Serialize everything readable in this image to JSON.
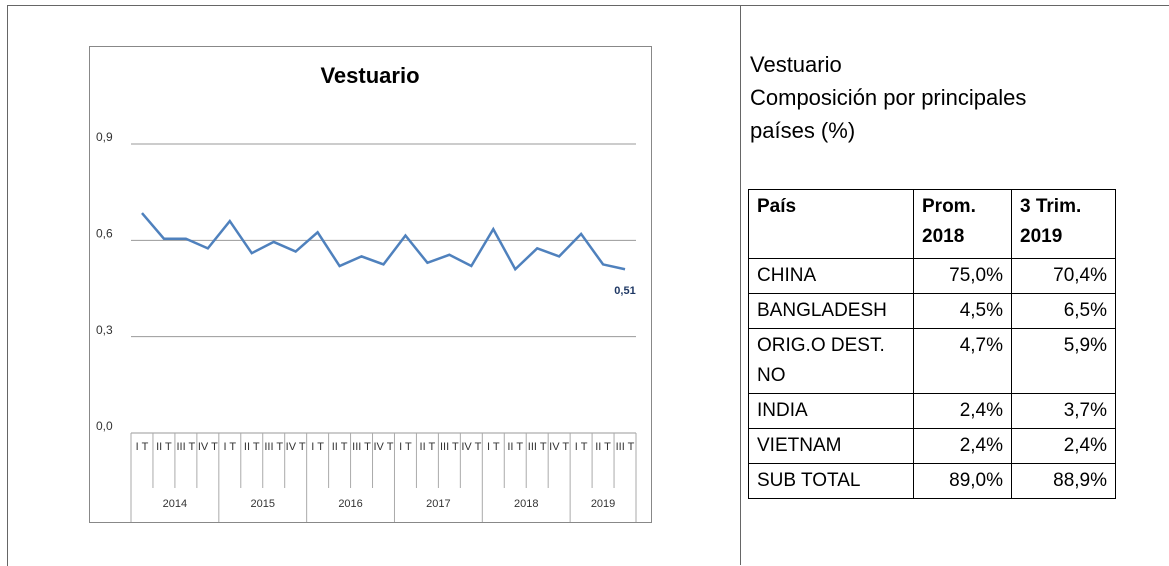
{
  "chart_data": {
    "type": "line",
    "title": "Vestuario",
    "categories": [
      "I T",
      "II T",
      "III T",
      "IV T",
      "I T",
      "II T",
      "III T",
      "IV T",
      "I T",
      "II T",
      "III T",
      "IV T",
      "I T",
      "II T",
      "III T",
      "IV T",
      "I T",
      "II T",
      "III T",
      "IV T",
      "I T",
      "II T",
      "III T"
    ],
    "groups": [
      {
        "label": "2014",
        "span": 4
      },
      {
        "label": "2015",
        "span": 4
      },
      {
        "label": "2016",
        "span": 4
      },
      {
        "label": "2017",
        "span": 4
      },
      {
        "label": "2018",
        "span": 4
      },
      {
        "label": "2019",
        "span": 3
      }
    ],
    "series": [
      {
        "name": "Vestuario",
        "color": "#4f81bd",
        "values": [
          0.685,
          0.605,
          0.605,
          0.575,
          0.66,
          0.56,
          0.595,
          0.565,
          0.625,
          0.52,
          0.55,
          0.525,
          0.615,
          0.53,
          0.555,
          0.52,
          0.635,
          0.51,
          0.575,
          0.55,
          0.62,
          0.525,
          0.51
        ],
        "value_labels": [
          null,
          null,
          null,
          null,
          null,
          null,
          null,
          null,
          null,
          null,
          null,
          null,
          null,
          null,
          null,
          null,
          null,
          null,
          null,
          null,
          null,
          null,
          "0,51"
        ]
      }
    ],
    "ylim": [
      0,
      0.9
    ],
    "yticks": [
      {
        "value": 0,
        "label": "0,0"
      },
      {
        "value": 0.3,
        "label": "0,3"
      },
      {
        "value": 0.6,
        "label": "0,6"
      },
      {
        "value": 0.9,
        "label": "0,9"
      }
    ],
    "grid": true
  },
  "side": {
    "title": "Vestuario",
    "subtitle": "Composición por principales países (%)"
  },
  "table": {
    "header": [
      "País",
      "Prom. 2018",
      "3 Trim. 2019"
    ],
    "rows": [
      [
        "CHINA",
        "75,0%",
        "70,4%"
      ],
      [
        "BANGLADESH",
        "4,5%",
        "6,5%"
      ],
      [
        "ORIG.O DEST. NO",
        "4,7%",
        "5,9%"
      ],
      [
        "INDIA",
        "2,4%",
        "3,7%"
      ],
      [
        "VIETNAM",
        "2,4%",
        "2,4%"
      ],
      [
        "SUB TOTAL",
        "89,0%",
        "88,9%"
      ]
    ]
  }
}
